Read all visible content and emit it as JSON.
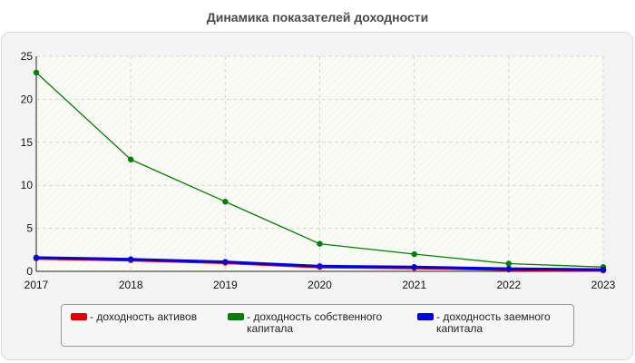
{
  "chart_data": {
    "type": "line",
    "title": "Динамика показателей доходности",
    "xlabel": "",
    "ylabel": "",
    "categories": [
      "2017",
      "2018",
      "2019",
      "2020",
      "2021",
      "2022",
      "2023"
    ],
    "ylim": [
      0,
      25
    ],
    "yticks": [
      "0",
      "5",
      "10",
      "15",
      "20",
      "25"
    ],
    "grid": true,
    "series": [
      {
        "name": "- доходность собственного капитала",
        "color": "#008000",
        "values": [
          23.1,
          13.0,
          8.1,
          3.2,
          2.0,
          0.9,
          0.5
        ]
      },
      {
        "name": "- доходность активов",
        "color": "#e00000",
        "values": [
          1.5,
          1.3,
          1.0,
          0.5,
          0.4,
          0.2,
          0.1
        ]
      },
      {
        "name": "- доходность заемного капитала",
        "color": "#0000e0",
        "values": [
          1.6,
          1.4,
          1.1,
          0.6,
          0.5,
          0.3,
          0.2
        ]
      }
    ]
  },
  "legend": {
    "items": [
      {
        "label": "- доходность активов",
        "color": "#e00000"
      },
      {
        "label": "- доходность собственного капитала",
        "color": "#008000"
      },
      {
        "label": "- доходность заемного капитала",
        "color": "#0000e0"
      }
    ]
  }
}
